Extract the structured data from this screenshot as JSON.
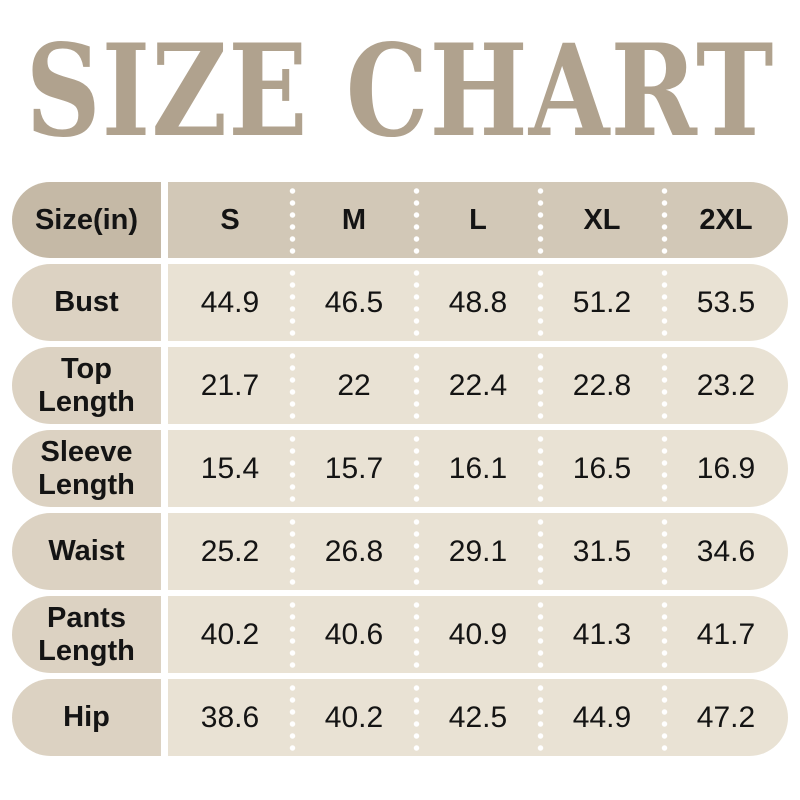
{
  "title": "SIZE CHART",
  "chart_data": {
    "type": "table",
    "title": "SIZE CHART",
    "unit_header": "Size(in)",
    "columns": [
      "S",
      "M",
      "L",
      "XL",
      "2XL"
    ],
    "rows": [
      {
        "label": "Bust",
        "values": [
          "44.9",
          "46.5",
          "48.8",
          "51.2",
          "53.5"
        ]
      },
      {
        "label": "Top Length",
        "values": [
          "21.7",
          "22",
          "22.4",
          "22.8",
          "23.2"
        ]
      },
      {
        "label": "Sleeve Length",
        "values": [
          "15.4",
          "15.7",
          "16.1",
          "16.5",
          "16.9"
        ]
      },
      {
        "label": "Waist",
        "values": [
          "25.2",
          "26.8",
          "29.1",
          "31.5",
          "34.6"
        ]
      },
      {
        "label": "Pants Length",
        "values": [
          "40.2",
          "40.6",
          "40.9",
          "41.3",
          "41.7"
        ]
      },
      {
        "label": "Hip",
        "values": [
          "38.6",
          "40.2",
          "42.5",
          "44.9",
          "47.2"
        ]
      }
    ]
  },
  "colors": {
    "title": "#b0a28e",
    "header_label_bg": "#c5b9a6",
    "header_data_bg": "#d2c8b7",
    "row_label_bg": "#dcd2c2",
    "row_data_bg": "#e9e2d4",
    "text": "#141414",
    "dot": "#ffffff"
  }
}
